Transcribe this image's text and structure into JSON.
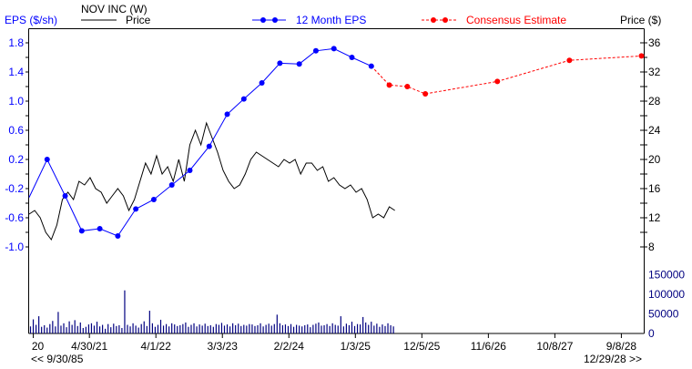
{
  "chart_data": {
    "type": "line",
    "title": "NOV INC (W)",
    "left_axis_label": "EPS ($/sh)",
    "right_axis_label": "Price ($)",
    "eps_ticks": [
      "1.8",
      "1.4",
      "1.0",
      "0.6",
      "0.2",
      "-0.2",
      "-0.6",
      "-1.0"
    ],
    "eps_tick_values": [
      1.8,
      1.4,
      1.0,
      0.6,
      0.2,
      -0.2,
      -0.6,
      -1.0
    ],
    "price_ticks": [
      "36",
      "32",
      "28",
      "24",
      "20",
      "16",
      "12",
      "8"
    ],
    "price_tick_values": [
      36,
      32,
      28,
      24,
      20,
      16,
      12,
      8
    ],
    "volume_ticks": [
      "150000",
      "100000",
      "50000",
      "0"
    ],
    "volume_tick_values": [
      150000,
      100000,
      50000,
      0
    ],
    "x_range_weeks": [
      0,
      443
    ],
    "x_ticks": [
      {
        "label": "20",
        "week": 3
      },
      {
        "label": "4/30/21",
        "week": 43.5
      },
      {
        "label": "4/1/22",
        "week": 91.5
      },
      {
        "label": "3/3/23",
        "week": 139.5
      },
      {
        "label": "2/2/24",
        "week": 187.5
      },
      {
        "label": "1/3/25",
        "week": 235.5
      },
      {
        "label": "12/5/25",
        "week": 283.5
      },
      {
        "label": "11/6/26",
        "week": 331.5
      },
      {
        "label": "10/8/27",
        "week": 379.5
      },
      {
        "label": "9/8/28",
        "week": 427.5
      }
    ],
    "nav_left": "<< 9/30/85",
    "nav_right": "12/29/28 >>",
    "legend": {
      "price": "Price",
      "eps": "12 Month EPS",
      "consensus": "Consensus Estimate"
    },
    "colors": {
      "price": "#000000",
      "eps": "#0000ff",
      "consensus": "#ff0000",
      "volume": "#000080",
      "eps_axis": "#0000ff",
      "volume_axis": "#000080"
    },
    "series": [
      {
        "name": "12 Month EPS",
        "x": [
          0,
          13,
          26,
          38,
          51,
          64,
          77,
          90,
          103,
          116,
          130,
          143,
          155,
          168,
          181,
          195,
          207,
          220,
          233,
          247
        ],
        "values": [
          -0.32,
          0.2,
          -0.3,
          -0.78,
          -0.75,
          -0.85,
          -0.48,
          -0.35,
          -0.15,
          0.05,
          0.38,
          0.82,
          1.03,
          1.25,
          1.52,
          1.51,
          1.69,
          1.72,
          1.6,
          1.48
        ]
      },
      {
        "name": "Consensus Estimate",
        "x": [
          247,
          260,
          273,
          286,
          338,
          390,
          442
        ],
        "values": [
          1.48,
          1.22,
          1.2,
          1.1,
          1.27,
          1.56,
          1.62
        ]
      },
      {
        "name": "Price",
        "x_step_weeks": 4,
        "values": [
          12.5,
          13,
          12,
          10,
          9,
          11,
          14.5,
          15.5,
          14.5,
          17,
          16.5,
          17.5,
          16,
          15.5,
          14,
          15,
          16,
          15,
          13,
          14.5,
          17,
          19.5,
          18,
          20.5,
          18,
          19,
          17,
          20,
          17,
          22,
          24,
          22,
          25,
          23,
          21,
          18.5,
          17,
          16,
          16.5,
          18,
          20,
          21,
          20.5,
          20,
          19.5,
          19,
          20,
          19.5,
          20,
          18,
          19.5,
          19.5,
          18.5,
          19,
          17,
          17.5,
          16.5,
          16,
          16.5,
          15.5,
          16,
          14.5,
          12,
          12.5,
          12,
          13.5,
          13
        ]
      },
      {
        "name": "Volume",
        "x_step_weeks": 2,
        "values": [
          18000,
          36000,
          22000,
          44000,
          17000,
          21000,
          15000,
          24000,
          32000,
          18000,
          55000,
          20000,
          26000,
          16000,
          31000,
          22000,
          34000,
          19000,
          28000,
          14000,
          17000,
          23000,
          26000,
          20000,
          30000,
          18000,
          22000,
          12000,
          24000,
          16000,
          25000,
          19000,
          21000,
          14000,
          110000,
          22000,
          18000,
          26000,
          20000,
          15000,
          24000,
          31000,
          19000,
          58000,
          26000,
          17000,
          22000,
          35000,
          20000,
          24000,
          18000,
          26000,
          23000,
          19000,
          21000,
          24000,
          28000,
          17000,
          22000,
          26000,
          18000,
          23000,
          20000,
          25000,
          19000,
          21000,
          17000,
          24000,
          22000,
          27000,
          20000,
          23000,
          18000,
          26000,
          21000,
          25000,
          19000,
          22000,
          20000,
          24000,
          23000,
          19000,
          21000,
          26000,
          18000,
          22000,
          25000,
          20000,
          24000,
          48000,
          26000,
          21000,
          23000,
          19000,
          24000,
          17000,
          22000,
          20000,
          18000,
          21000,
          23000,
          16000,
          22000,
          25000,
          28000,
          20000,
          21000,
          24000,
          19000,
          26000,
          22000,
          20000,
          44000,
          18000,
          25000,
          21000,
          30000,
          19000,
          24000,
          23000,
          42000,
          28000,
          22000,
          30000,
          20000,
          25000,
          17000,
          23000,
          19000,
          26000,
          21000,
          18000
        ]
      }
    ]
  }
}
